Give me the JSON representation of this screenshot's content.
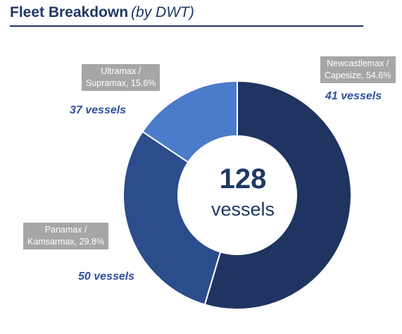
{
  "header": {
    "title": "Fleet Breakdown",
    "subtitle": "(by DWT)"
  },
  "chart_data": {
    "type": "pie",
    "style": "donut",
    "total_value": "128",
    "total_label": "vessels",
    "slices": [
      {
        "label_line1": "Newcastlemax /",
        "label_line2": "Capesize, 54.6%",
        "percent": 54.6,
        "vessels_label": "41 vessels",
        "color": "#1f3460"
      },
      {
        "label_line1": "Panamax /",
        "label_line2": "Kamsarmax, 29.8%",
        "percent": 29.8,
        "vessels_label": "50 vessels",
        "color": "#2b4d8c"
      },
      {
        "label_line1": "Ultramax /",
        "label_line2": "Supramax, 15.6%",
        "percent": 15.6,
        "vessels_label": "37 vessels",
        "color": "#4a7cc9"
      }
    ]
  },
  "colors": {
    "label_box": "#a6a6a6",
    "accent_text": "#2f4f9e",
    "title": "#1f3864"
  }
}
